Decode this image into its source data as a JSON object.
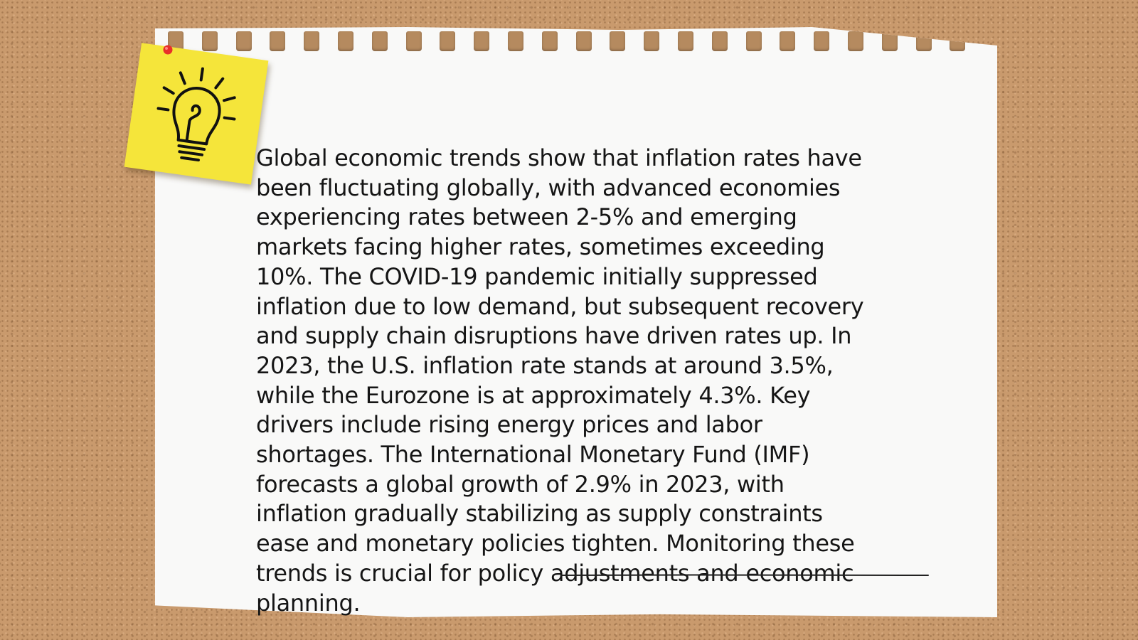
{
  "note": {
    "body_text": "Global economic trends show that inflation rates have been fluctuating globally, with advanced economies experiencing rates between 2-5% and emerging markets facing higher rates, sometimes exceeding 10%. The COVID-19 pandemic initially suppressed inflation due to low demand, but subsequent recovery and supply chain disruptions have driven rates up. In 2023, the U.S. inflation rate stands at around 3.5%, while the Eurozone is at approximately 4.3%. Key drivers include rising energy prices and labor shortages. The International Monetary Fund (IMF) forecasts a global growth of 2.9% in 2023, with inflation gradually stabilizing as supply constraints ease and monetary policies tighten. Monitoring these trends is crucial for policy adjustments and economic planning."
  },
  "decorations": {
    "sticky_note_icon": "lightbulb-icon",
    "pin_icon": "pushpin-icon",
    "background": "corkboard",
    "colors": {
      "cork": "#c99a6d",
      "paper": "#f9f9f8",
      "sticky_note": "#f5e53a",
      "pin": "#e8302a",
      "text": "#151515"
    }
  }
}
